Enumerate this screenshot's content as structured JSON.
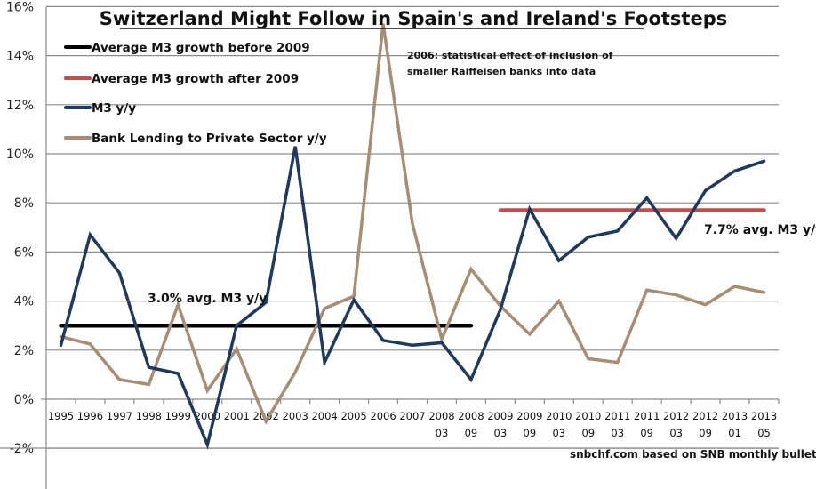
{
  "chart_data": {
    "type": "line",
    "title": "Switzerland Might Follow in Spain's and Ireland's Footsteps",
    "xlabel": "",
    "ylabel": "",
    "ylim": [
      -3,
      16
    ],
    "yticks": [
      -2,
      0,
      2,
      4,
      6,
      8,
      10,
      12,
      14,
      16
    ],
    "ytick_labels": [
      "-2%",
      "0%",
      "2%",
      "4%",
      "6%",
      "8%",
      "10%",
      "12%",
      "14%",
      "16%"
    ],
    "grid": true,
    "legend_position": "top-left",
    "categories": [
      [
        "1995"
      ],
      [
        "1996"
      ],
      [
        "1997"
      ],
      [
        "1998"
      ],
      [
        "1999"
      ],
      [
        "2000"
      ],
      [
        "2001"
      ],
      [
        "2002"
      ],
      [
        "2003"
      ],
      [
        "2004"
      ],
      [
        "2005"
      ],
      [
        "2006"
      ],
      [
        "2007"
      ],
      [
        "2008",
        "03"
      ],
      [
        "2008",
        "09"
      ],
      [
        "2009",
        "03"
      ],
      [
        "2009",
        "09"
      ],
      [
        "2010",
        "03"
      ],
      [
        "2010",
        "09"
      ],
      [
        "2011",
        "03"
      ],
      [
        "2011",
        "09"
      ],
      [
        "2012",
        "03"
      ],
      [
        "2012",
        "09"
      ],
      [
        "2013",
        "01"
      ],
      [
        "2013",
        "05"
      ]
    ],
    "series": [
      {
        "name": "Average M3 growth before 2009",
        "color": "#000000",
        "start_index": 0,
        "end_index": 14,
        "constant": 3.0
      },
      {
        "name": "Average M3 growth after 2009",
        "color": "#c0504d",
        "start_index": 15,
        "end_index": 24,
        "constant": 7.7
      },
      {
        "name": "M3 y/y",
        "color": "#1f3a5f",
        "values": [
          2.2,
          6.7,
          5.15,
          1.3,
          1.05,
          -1.85,
          3.0,
          3.95,
          10.3,
          1.5,
          4.05,
          2.4,
          2.2,
          2.3,
          0.8,
          3.65,
          7.75,
          5.65,
          6.6,
          6.85,
          8.2,
          6.55,
          8.5,
          9.3,
          9.7
        ]
      },
      {
        "name": "Bank Lending to Private Sector y/y",
        "color": "#a88c73",
        "values": [
          2.55,
          2.25,
          0.8,
          0.6,
          3.85,
          0.35,
          2.05,
          -0.9,
          1.1,
          3.7,
          4.2,
          15.3,
          7.15,
          2.45,
          5.3,
          3.8,
          2.65,
          4.0,
          1.65,
          1.5,
          4.45,
          4.25,
          3.85,
          4.6,
          4.35
        ]
      }
    ],
    "annotations": {
      "note_2006_line1": "2006: statistical effect of inclusion of",
      "note_2006_line2": "smaller Raiffeisen banks  into data",
      "avg_before_label": "3.0% avg. M3 y/y",
      "avg_after_label": "7.7% avg. M3 y/y",
      "source": "snbchf.com based on SNB monthly bulletins"
    }
  }
}
